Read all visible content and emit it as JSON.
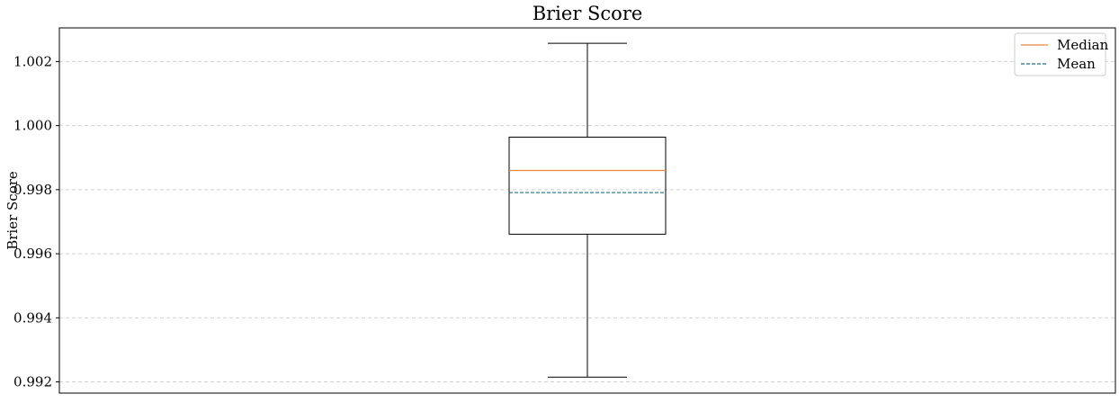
{
  "chart_data": {
    "type": "box",
    "title": "Brier Score",
    "xlabel": "",
    "ylabel": "Brier Score",
    "ylim": [
      0.99165,
      1.00305
    ],
    "yticks": [
      0.992,
      0.994,
      0.996,
      0.998,
      1.0,
      1.002
    ],
    "ytick_labels": [
      "0.992",
      "0.994",
      "0.996",
      "0.998",
      "1.000",
      "1.002"
    ],
    "grid": {
      "y": true,
      "x": false,
      "style": "dashed",
      "color": "#d0d0d0"
    },
    "box": {
      "whisker_low": 0.99215,
      "q1": 0.99661,
      "median": 0.9986,
      "mean": 0.99791,
      "q3": 0.99964,
      "whisker_high": 1.00257
    },
    "legend": {
      "placement": "top-right",
      "entries": [
        {
          "label": "Median",
          "color": "#e8883a",
          "style": "solid"
        },
        {
          "label": "Mean",
          "color": "#1f6f8b",
          "style": "dashed"
        }
      ]
    },
    "colors": {
      "box": "#000000",
      "median": "#e8883a",
      "mean": "#1f6f8b"
    }
  }
}
